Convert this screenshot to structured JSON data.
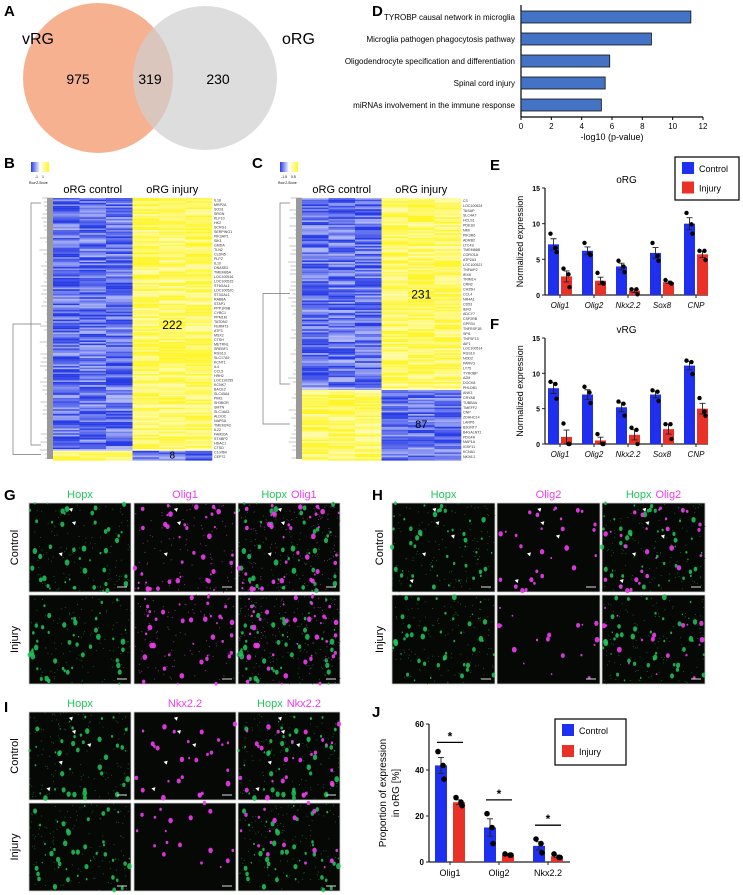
{
  "panels": {
    "A": "A",
    "B": "B",
    "C": "C",
    "D": "D",
    "E": "E",
    "F": "F",
    "G": "G",
    "H": "H",
    "I": "I",
    "J": "J"
  },
  "venn": {
    "left_label": "vRG",
    "right_label": "oRG",
    "left_only": "975",
    "overlap": "319",
    "right_only": "230",
    "colors": {
      "left": "#f4a57c",
      "right": "#cfcfcf"
    }
  },
  "heatmap_b": {
    "scale_title": "Row Z-Score",
    "scale_ticks": [
      "-1",
      "1"
    ],
    "group_labels": [
      "oRG control",
      "oRG injury"
    ],
    "cluster_counts": [
      "222",
      "8"
    ],
    "genes": [
      "IL18",
      "MRP2A",
      "SOS1",
      "SRGN",
      "KLF10",
      "HK2",
      "SCRG1",
      "SERPING1",
      "PIK3AP1",
      "SIK1",
      "GMDA",
      "TLN2",
      "CLDN5",
      "PLP2",
      "IL10",
      "DNASE2",
      "TMEM86A",
      "LOC100516",
      "LOC100515",
      "ST6GAL1",
      "LOC100520",
      "ST3GAL1",
      "RAB8A",
      "STAP1",
      "PPP1R9B",
      "CYBC1",
      "PPM1M",
      "TATDN2",
      "FERMT3",
      "ATF3",
      "MSX2",
      "CTSH",
      "METRNL",
      "SREBF1",
      "RGS13",
      "SLC17A9",
      "KCNT1",
      "IL4",
      "CCL5",
      "HRH2",
      "LOC110255",
      "KCNK7",
      "BACE2",
      "SLC45A4",
      "PIM3",
      "SH3BGR",
      "SMTN",
      "SLC16A3",
      "ALDOC",
      "NAPSA",
      "TMEM243",
      "IL22",
      "FAM20A",
      "STXBP2",
      "HDAC1",
      "CTSD",
      "C1orf64",
      "CEP72"
    ]
  },
  "heatmap_c": {
    "scale_title": "Row Z-Score",
    "scale_ticks": [
      "-1.5",
      "0.5"
    ],
    "group_labels": [
      "oRG control",
      "oRG injury"
    ],
    "cluster_counts": [
      "231",
      "87"
    ],
    "genes": [
      "C3",
      "LOC100624",
      "TASAP",
      "SLC4A7",
      "HCLS1",
      "PDE1B",
      "NMI",
      "PIK3R6",
      "ADRB2",
      "LTC4S",
      "TMEM86B",
      "CORO1A",
      "ATP2A3",
      "LOC100521",
      "TNFAIP2",
      "IRX6",
      "TRIM14",
      "CRN2",
      "CH25H",
      "CCL4",
      "NR4A1",
      "CD53",
      "IER3",
      "ADCY7",
      "CSF2RB",
      "GPR34",
      "TNFRSF1B",
      "SPI1",
      "TNFSF13",
      "AIF1",
      "LOC100514",
      "RGS10",
      "NOD2",
      "PARVG",
      "LY75",
      "TYROBP",
      "A2M",
      "DOCK8",
      "PHLDB1",
      "ANK3",
      "CRYAB",
      "TUBB4A",
      "TMEFF2",
      "CNP",
      "ZDHHC14",
      "LARP6",
      "B3GNT7",
      "B4GALNT1",
      "PDGFA",
      "MAP1A",
      "IGSF11",
      "KCNA1",
      "NKX6.2"
    ]
  },
  "legend": {
    "control": "Control",
    "injury": "Injury",
    "colors": {
      "control": "#1f2ff0",
      "injury": "#ea3127"
    }
  },
  "chart_data": [
    {
      "id": "D",
      "type": "bar",
      "orientation": "horizontal",
      "categories": [
        "TYROBP causal network in microglia",
        "Microglia pathogen phagocytosis pathway",
        "Oligodendrocyte specification and differentiation",
        "Spinal cord injury",
        "miRNAs involvement in the immune response"
      ],
      "values": [
        11.2,
        8.6,
        5.85,
        5.55,
        5.3
      ],
      "xlabel": "-log10 (p-value)",
      "xlim": [
        0,
        12
      ],
      "xticks": [
        "0",
        "2",
        "4",
        "6",
        "8",
        "10",
        "12"
      ],
      "color": "#4472c4"
    },
    {
      "id": "E",
      "type": "bar",
      "title": "oRG",
      "ylabel": "Normalized expression",
      "ylim": [
        0,
        15
      ],
      "yticks": [
        "0",
        "5",
        "10",
        "15"
      ],
      "categories": [
        "Olig1",
        "Olig2",
        "Nkx2.2",
        "Sox8",
        "CNP"
      ],
      "series": [
        {
          "name": "Control",
          "values": [
            7.1,
            6.2,
            4.0,
            5.9,
            10.0
          ],
          "points": [
            [
              8.6,
              6.6,
              6.0
            ],
            [
              7.3,
              5.8,
              5.6
            ],
            [
              4.8,
              4.0,
              3.2
            ],
            [
              7.3,
              5.5,
              4.8
            ],
            [
              11.5,
              9.9,
              8.6
            ]
          ]
        },
        {
          "name": "Injury",
          "values": [
            2.6,
            2.0,
            0.6,
            1.8,
            5.7
          ],
          "points": [
            [
              3.7,
              2.9,
              1.1
            ],
            [
              3.1,
              1.7,
              1.6
            ],
            [
              0.8,
              0.8,
              0.1
            ],
            [
              2.1,
              1.7,
              1.6
            ],
            [
              6.2,
              6.2,
              4.9
            ]
          ]
        }
      ]
    },
    {
      "id": "F",
      "type": "bar",
      "title": "vRG",
      "ylabel": "Normalized expression",
      "ylim": [
        0,
        15
      ],
      "yticks": [
        "0",
        "5",
        "10",
        "15"
      ],
      "categories": [
        "Olig1",
        "Olig2",
        "Nkx2.2",
        "Sox8",
        "CNP"
      ],
      "series": [
        {
          "name": "Control",
          "values": [
            7.9,
            7.0,
            5.2,
            7.0,
            11.1
          ],
          "points": [
            [
              8.8,
              8.5,
              6.4
            ],
            [
              8.1,
              7.3,
              5.8
            ],
            [
              6.0,
              5.7,
              4.0
            ],
            [
              7.6,
              7.4,
              6.1
            ],
            [
              11.8,
              11.6,
              9.9
            ]
          ]
        },
        {
          "name": "Injury",
          "values": [
            1.0,
            0.5,
            1.3,
            2.1,
            5.0
          ],
          "points": [
            [
              2.9,
              0,
              0
            ],
            [
              1.4,
              0,
              0
            ],
            [
              2.3,
              2.0,
              0
            ],
            [
              2.8,
              2.8,
              0.7
            ],
            [
              6.5,
              4.6,
              4.0
            ]
          ]
        }
      ]
    },
    {
      "id": "J",
      "type": "bar",
      "ylabel_lines": [
        "Proportion of expression",
        "in oRG [%]"
      ],
      "ylim": [
        0,
        60
      ],
      "yticks": [
        "0",
        "20",
        "40",
        "60"
      ],
      "categories": [
        "Olig1",
        "Olig2",
        "Nkx2.2"
      ],
      "significance": [
        "*",
        "*",
        "*"
      ],
      "series": [
        {
          "name": "Control",
          "values": [
            42,
            15,
            7
          ],
          "points": [
            [
              48,
              42,
              36
            ],
            [
              21,
              15,
              8
            ],
            [
              10,
              8,
              4
            ]
          ]
        },
        {
          "name": "Injury",
          "values": [
            26,
            3,
            2.5
          ],
          "points": [
            [
              28,
              26,
              24.5
            ],
            [
              3.5,
              3,
              3
            ],
            [
              3.5,
              2,
              2
            ]
          ]
        }
      ]
    }
  ],
  "micrographs": {
    "G": {
      "cols": [
        {
          "a": "Hopx",
          "b": ""
        },
        {
          "a": "",
          "b": "Olig1"
        },
        {
          "a": "Hopx",
          "b": "Olig1"
        }
      ]
    },
    "H": {
      "cols": [
        {
          "a": "Hopx",
          "b": ""
        },
        {
          "a": "",
          "b": "Olig2"
        },
        {
          "a": "Hopx",
          "b": "Olig2"
        }
      ]
    },
    "I": {
      "cols": [
        {
          "a": "Hopx",
          "b": ""
        },
        {
          "a": "",
          "b": "Nkx2.2"
        },
        {
          "a": "Hopx",
          "b": "Nkx2.2"
        }
      ]
    },
    "row_labels": [
      "Control",
      "Injury"
    ],
    "colors": {
      "green": "#22c55a",
      "magenta": "#f03cf0"
    }
  }
}
